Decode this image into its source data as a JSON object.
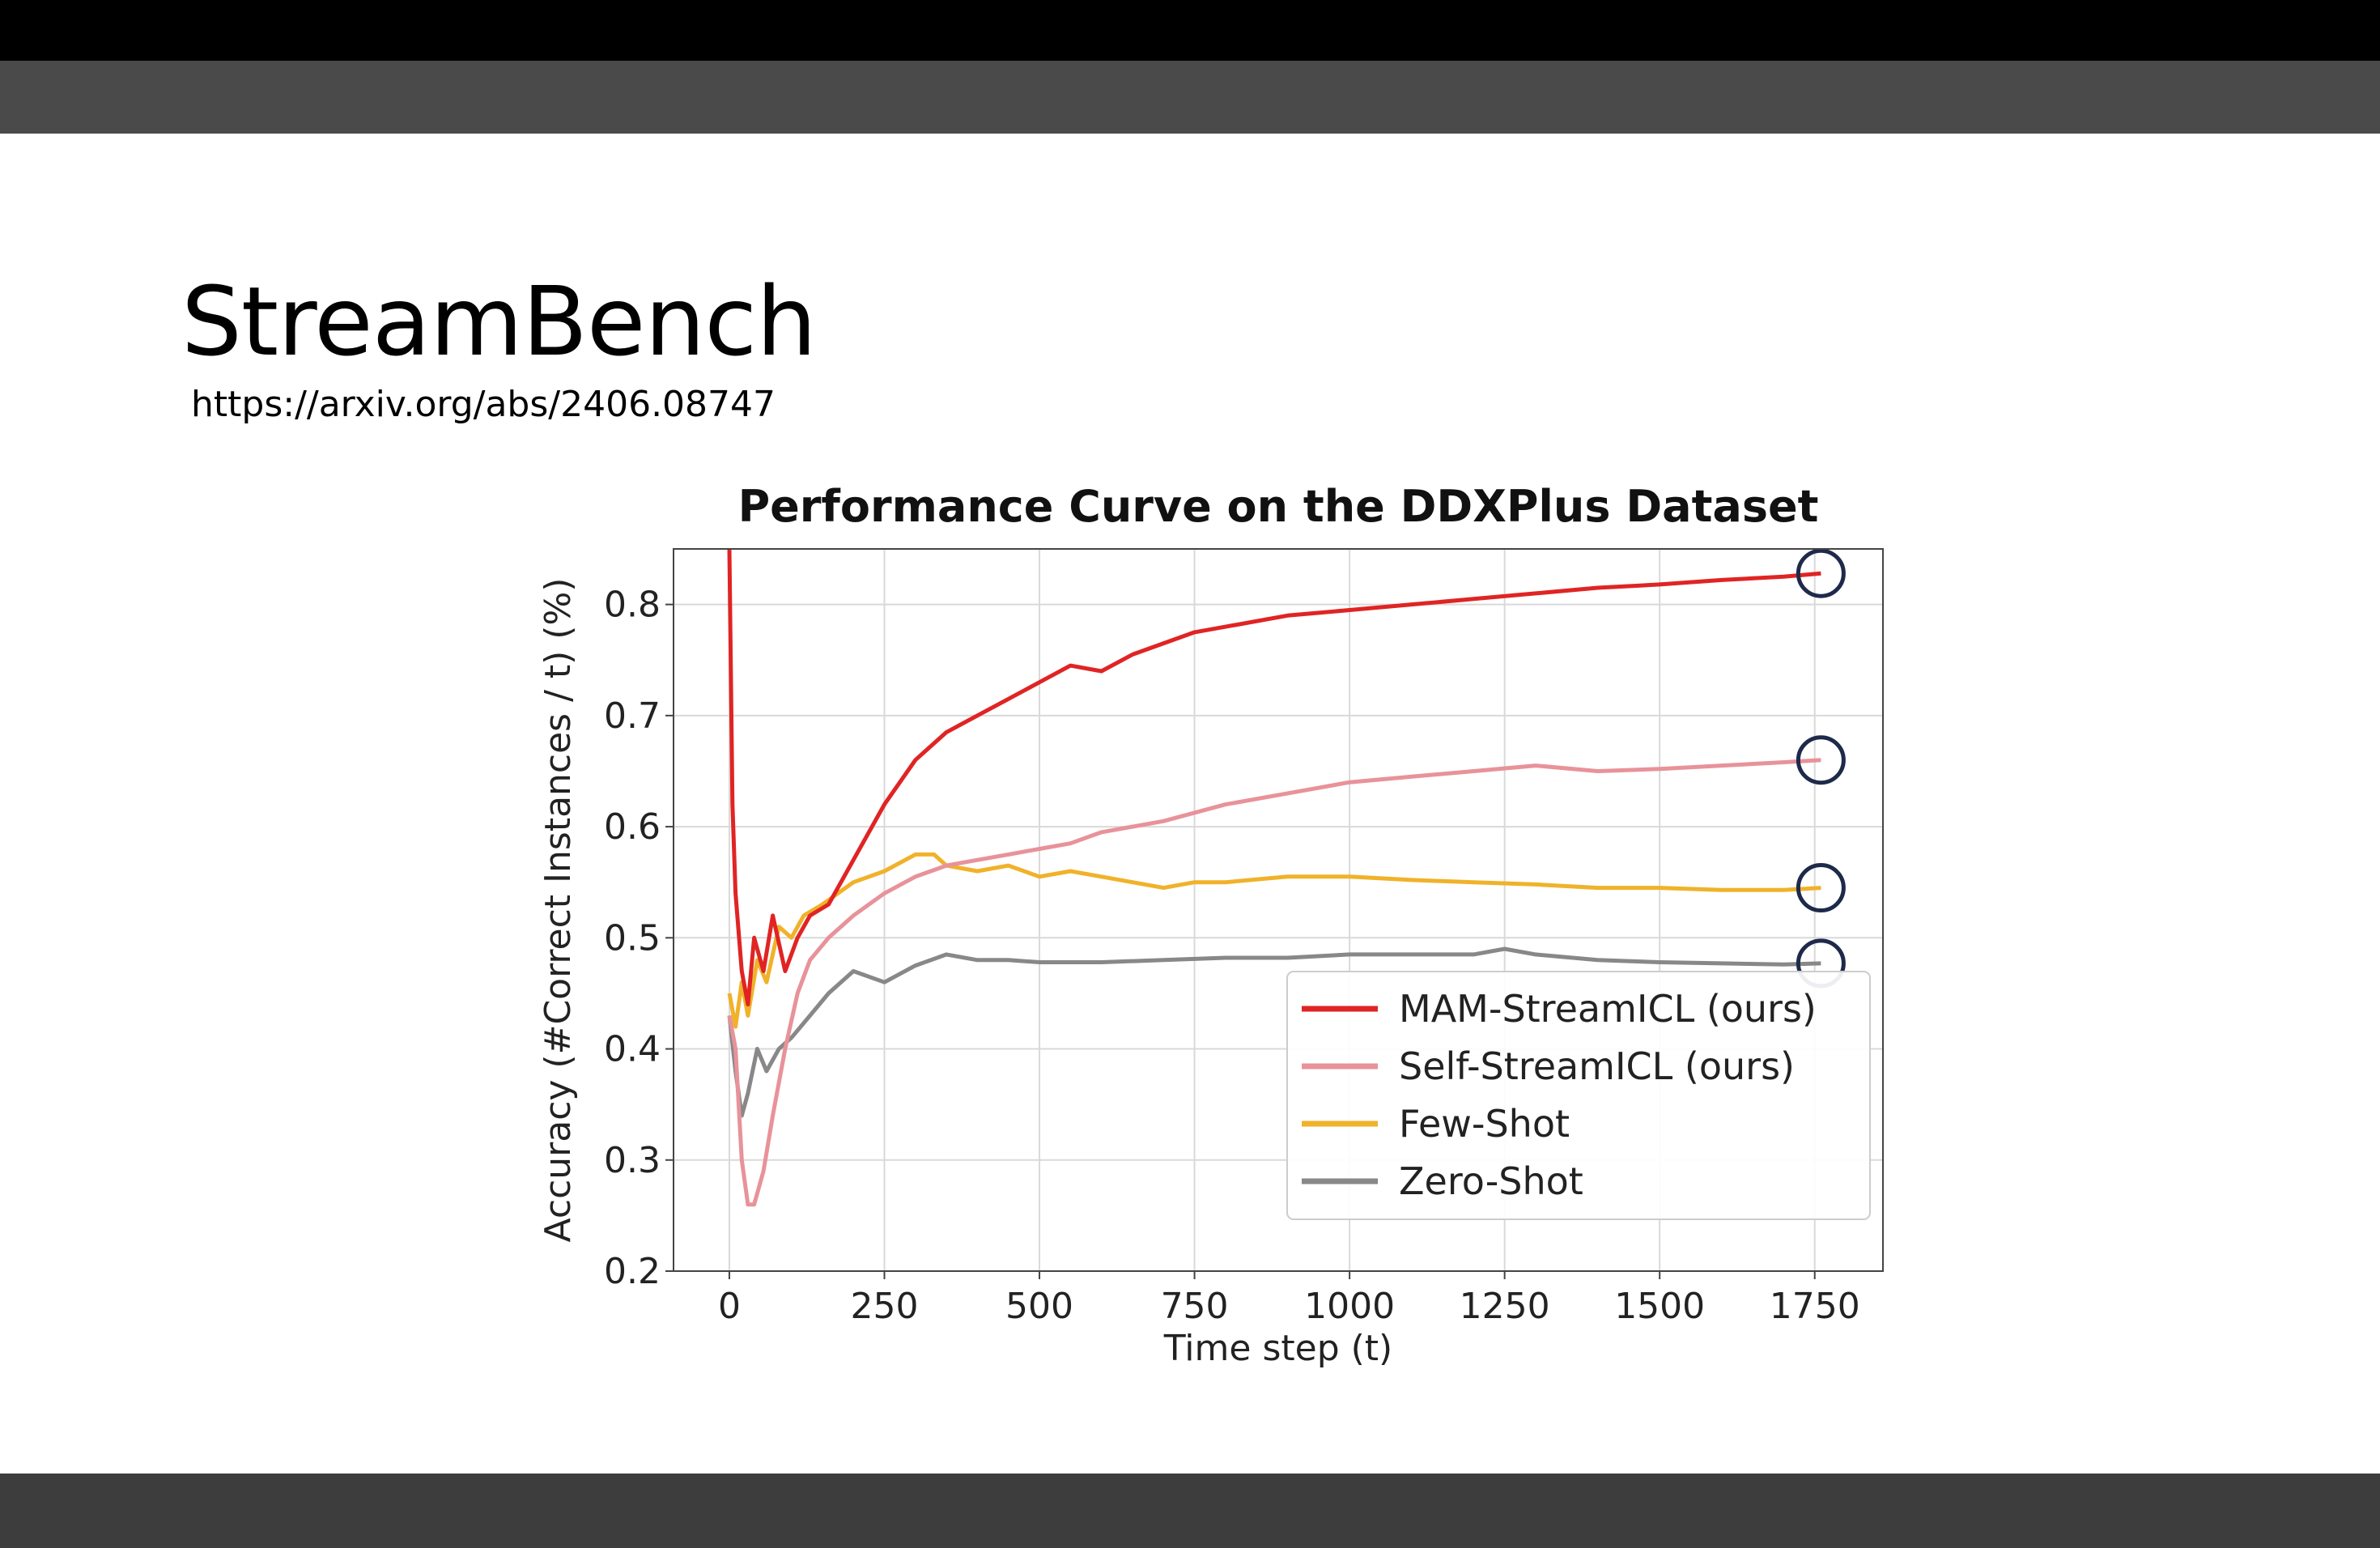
{
  "slide": {
    "title": "StreamBench",
    "link": "https://arxiv.org/abs/2406.08747"
  },
  "colors": {
    "top_bar": "#000000",
    "toolbar": "#4a4a4a",
    "slide_bg": "#ffffff",
    "bottom_bar": "#3d3d3d",
    "marker_circle": "#1e2a4a"
  },
  "chart_data": {
    "type": "line",
    "title": "Performance Curve on the DDXPlus Dataset",
    "xlabel": "Time step (t)",
    "ylabel": "Accuracy (#Correct Instances / t) (%)",
    "xlim": [
      -90,
      1860
    ],
    "ylim": [
      0.2,
      0.85
    ],
    "xticks": [
      0,
      250,
      500,
      750,
      1000,
      1250,
      1500,
      1750
    ],
    "yticks": [
      0.2,
      0.3,
      0.4,
      0.5,
      0.6,
      0.7,
      0.8
    ],
    "grid": true,
    "legend_position": "lower right",
    "end_markers": "circles around final value of each series",
    "series": [
      {
        "name": "MAM-StreamICL (ours)",
        "color": "#e02424",
        "points": [
          [
            0,
            0.85
          ],
          [
            5,
            0.62
          ],
          [
            10,
            0.54
          ],
          [
            20,
            0.47
          ],
          [
            30,
            0.44
          ],
          [
            40,
            0.5
          ],
          [
            55,
            0.47
          ],
          [
            70,
            0.52
          ],
          [
            90,
            0.47
          ],
          [
            110,
            0.5
          ],
          [
            130,
            0.52
          ],
          [
            160,
            0.53
          ],
          [
            200,
            0.57
          ],
          [
            250,
            0.62
          ],
          [
            300,
            0.66
          ],
          [
            350,
            0.685
          ],
          [
            400,
            0.7
          ],
          [
            450,
            0.715
          ],
          [
            500,
            0.73
          ],
          [
            550,
            0.745
          ],
          [
            600,
            0.74
          ],
          [
            650,
            0.755
          ],
          [
            700,
            0.765
          ],
          [
            750,
            0.775
          ],
          [
            800,
            0.78
          ],
          [
            900,
            0.79
          ],
          [
            1000,
            0.795
          ],
          [
            1100,
            0.8
          ],
          [
            1200,
            0.805
          ],
          [
            1300,
            0.81
          ],
          [
            1400,
            0.815
          ],
          [
            1500,
            0.818
          ],
          [
            1600,
            0.822
          ],
          [
            1700,
            0.825
          ],
          [
            1760,
            0.828
          ]
        ]
      },
      {
        "name": "Self-StreamICL (ours)",
        "color": "#e8929a",
        "points": [
          [
            0,
            0.43
          ],
          [
            10,
            0.4
          ],
          [
            20,
            0.3
          ],
          [
            30,
            0.26
          ],
          [
            40,
            0.26
          ],
          [
            55,
            0.29
          ],
          [
            70,
            0.34
          ],
          [
            90,
            0.4
          ],
          [
            110,
            0.45
          ],
          [
            130,
            0.48
          ],
          [
            160,
            0.5
          ],
          [
            200,
            0.52
          ],
          [
            250,
            0.54
          ],
          [
            300,
            0.555
          ],
          [
            350,
            0.565
          ],
          [
            400,
            0.57
          ],
          [
            450,
            0.575
          ],
          [
            500,
            0.58
          ],
          [
            550,
            0.585
          ],
          [
            600,
            0.595
          ],
          [
            700,
            0.605
          ],
          [
            800,
            0.62
          ],
          [
            900,
            0.63
          ],
          [
            1000,
            0.64
          ],
          [
            1100,
            0.645
          ],
          [
            1200,
            0.65
          ],
          [
            1300,
            0.655
          ],
          [
            1400,
            0.65
          ],
          [
            1500,
            0.652
          ],
          [
            1600,
            0.655
          ],
          [
            1700,
            0.658
          ],
          [
            1760,
            0.66
          ]
        ]
      },
      {
        "name": "Few-Shot",
        "color": "#f0b22a",
        "points": [
          [
            0,
            0.45
          ],
          [
            10,
            0.42
          ],
          [
            20,
            0.46
          ],
          [
            30,
            0.43
          ],
          [
            45,
            0.48
          ],
          [
            60,
            0.46
          ],
          [
            80,
            0.51
          ],
          [
            100,
            0.5
          ],
          [
            120,
            0.52
          ],
          [
            150,
            0.53
          ],
          [
            200,
            0.55
          ],
          [
            250,
            0.56
          ],
          [
            300,
            0.575
          ],
          [
            330,
            0.575
          ],
          [
            350,
            0.565
          ],
          [
            400,
            0.56
          ],
          [
            450,
            0.565
          ],
          [
            500,
            0.555
          ],
          [
            550,
            0.56
          ],
          [
            600,
            0.555
          ],
          [
            650,
            0.55
          ],
          [
            700,
            0.545
          ],
          [
            750,
            0.55
          ],
          [
            800,
            0.55
          ],
          [
            900,
            0.555
          ],
          [
            1000,
            0.555
          ],
          [
            1100,
            0.552
          ],
          [
            1200,
            0.55
          ],
          [
            1300,
            0.548
          ],
          [
            1400,
            0.545
          ],
          [
            1500,
            0.545
          ],
          [
            1600,
            0.543
          ],
          [
            1700,
            0.543
          ],
          [
            1760,
            0.545
          ]
        ]
      },
      {
        "name": "Zero-Shot",
        "color": "#888888",
        "points": [
          [
            0,
            0.43
          ],
          [
            10,
            0.38
          ],
          [
            20,
            0.34
          ],
          [
            30,
            0.36
          ],
          [
            45,
            0.4
          ],
          [
            60,
            0.38
          ],
          [
            80,
            0.4
          ],
          [
            100,
            0.41
          ],
          [
            130,
            0.43
          ],
          [
            160,
            0.45
          ],
          [
            200,
            0.47
          ],
          [
            250,
            0.46
          ],
          [
            300,
            0.475
          ],
          [
            350,
            0.485
          ],
          [
            400,
            0.48
          ],
          [
            450,
            0.48
          ],
          [
            500,
            0.478
          ],
          [
            600,
            0.478
          ],
          [
            700,
            0.48
          ],
          [
            800,
            0.482
          ],
          [
            900,
            0.482
          ],
          [
            1000,
            0.485
          ],
          [
            1100,
            0.485
          ],
          [
            1200,
            0.485
          ],
          [
            1250,
            0.49
          ],
          [
            1300,
            0.485
          ],
          [
            1400,
            0.48
          ],
          [
            1500,
            0.478
          ],
          [
            1600,
            0.477
          ],
          [
            1700,
            0.476
          ],
          [
            1760,
            0.477
          ]
        ]
      }
    ]
  }
}
